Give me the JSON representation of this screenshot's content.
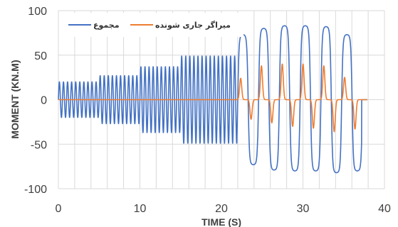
{
  "chart_data": {
    "type": "line",
    "xlabel": "TIME (S)",
    "ylabel": "MOMENT (KN.M)",
    "xlim": [
      0,
      40
    ],
    "ylim": [
      -100,
      100
    ],
    "xticks": [
      0,
      10,
      20,
      30,
      40
    ],
    "yticks": [
      -100,
      -50,
      0,
      50,
      100
    ],
    "grid": true,
    "legend_position": "top-left",
    "series": [
      {
        "name": "مجموع",
        "color": "#4472C4",
        "x_range": [
          0,
          37.9
        ],
        "amplitude_segments": [
          {
            "t_start": 0,
            "t_end": 5,
            "amplitude": 20,
            "period": 0.5
          },
          {
            "t_start": 5,
            "t_end": 10,
            "amplitude": 27,
            "period": 0.5
          },
          {
            "t_start": 10,
            "t_end": 15,
            "amplitude": 37,
            "period": 0.5
          },
          {
            "t_start": 15,
            "t_end": 21.9,
            "amplitude": 49,
            "period": 0.5
          }
        ],
        "large_cycles": {
          "t_start": 21.9,
          "period": 2.55,
          "peaks": [
            73,
            80,
            83,
            83,
            82,
            73
          ],
          "troughs": [
            -73,
            -79,
            -80,
            -80,
            -82,
            -80
          ]
        }
      },
      {
        "name": "میراگر جاری شونده",
        "color": "#ED7D31",
        "x_range": [
          0,
          37.9
        ],
        "large_cycles": {
          "t_start": 21.9,
          "period": 2.55,
          "peaks": [
            24,
            38,
            40,
            40,
            38,
            25
          ],
          "troughs": [
            -22,
            -26,
            -30,
            -32,
            -36,
            -33
          ]
        }
      }
    ]
  }
}
